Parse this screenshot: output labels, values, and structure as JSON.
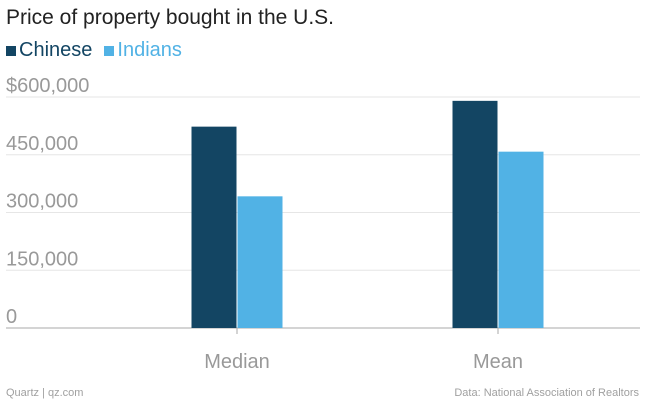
{
  "title": "Price of property bought in the U.S.",
  "colors": {
    "chinese": "#134563",
    "indians": "#51b2e5",
    "grid": "#e6e6e6",
    "axis_text": "#999999",
    "baseline": "#aaaaaa"
  },
  "legend": [
    {
      "label": "Chinese",
      "color": "#134563"
    },
    {
      "label": "Indians",
      "color": "#51b2e5"
    }
  ],
  "footer": {
    "source_left": "Quartz | qz.com",
    "source_right": "Data: National Association of Realtors"
  },
  "chart_data": {
    "type": "bar",
    "title": "Price of property bought in the U.S.",
    "categories": [
      "Median",
      "Mean"
    ],
    "series": [
      {
        "name": "Chinese",
        "values": [
          523000,
          590000
        ]
      },
      {
        "name": "Indians",
        "values": [
          342000,
          458000
        ]
      }
    ],
    "ylim": [
      0,
      600000
    ],
    "yticks": [
      0,
      150000,
      300000,
      450000,
      600000
    ],
    "ytick_labels": [
      "0",
      "150,000",
      "300,000",
      "450,000",
      "$600,000"
    ],
    "xlabel": "",
    "ylabel": "",
    "grid": true,
    "legend_position": "top-left"
  }
}
